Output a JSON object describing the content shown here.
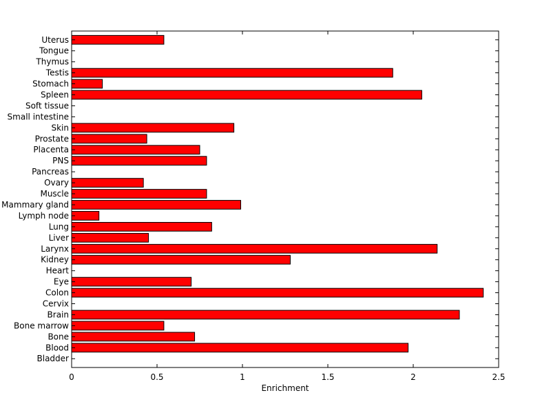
{
  "chart_data": {
    "type": "bar",
    "orientation": "horizontal",
    "title": "",
    "xlabel": "Enrichment",
    "ylabel": "",
    "xlim": [
      0,
      2.5
    ],
    "xticks": [
      0,
      0.5,
      1,
      1.5,
      2,
      2.5
    ],
    "xtick_labels": [
      "0",
      "0.5",
      "1",
      "1.5",
      "2",
      "2.5"
    ],
    "grid": false,
    "bar_color": "#ff0000",
    "bar_edge_color": "#000000",
    "categories": [
      "Bladder",
      "Blood",
      "Bone",
      "Bone marrow",
      "Brain",
      "Cervix",
      "Colon",
      "Eye",
      "Heart",
      "Kidney",
      "Larynx",
      "Liver",
      "Lung",
      "Lymph node",
      "Mammary gland",
      "Muscle",
      "Ovary",
      "Pancreas",
      "PNS",
      "Placenta",
      "Prostate",
      "Skin",
      "Small intestine",
      "Soft tissue",
      "Spleen",
      "Stomach",
      "Testis",
      "Thymus",
      "Tongue",
      "Uterus"
    ],
    "values": [
      0,
      1.97,
      0.72,
      0.54,
      2.27,
      0,
      2.41,
      0.7,
      0,
      1.28,
      2.14,
      0.45,
      0.82,
      0.16,
      0.99,
      0.79,
      0.42,
      0,
      0.79,
      0.75,
      0.44,
      0.95,
      0,
      0,
      2.05,
      0.18,
      1.88,
      0,
      0,
      0.54
    ]
  }
}
